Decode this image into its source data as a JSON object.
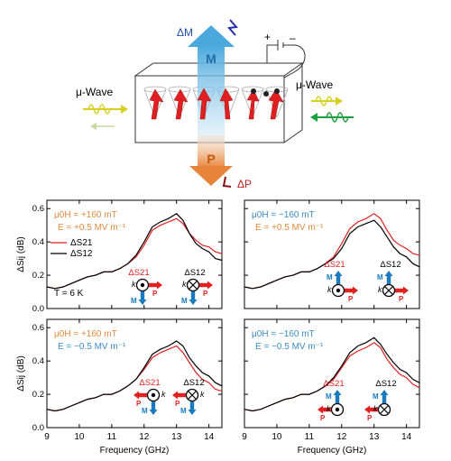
{
  "schematic": {
    "left_label": "μ-Wave",
    "right_label": "μ-Wave",
    "delta_m": "ΔM",
    "m": "M",
    "p": "P",
    "delta_p": "ΔP",
    "plus": "+",
    "minus": "–",
    "colors": {
      "m_arrow": "#5bb4e0",
      "p_arrow": "#e8904a",
      "spin": "#e02020",
      "left_wave": "#d8d020",
      "right_wave": "#d8d020",
      "right_back_wave": "#20a040"
    }
  },
  "chart_data": [
    {
      "type": "line",
      "panel": "top-left",
      "annotation_field": "μ0H = +160 mT",
      "annotation_e": "E = +0.5 MV m⁻¹",
      "annotation_temp": "T = 6 K",
      "field_color": "#e08a3c",
      "efield_color": "#e08a3c",
      "xlabel": "",
      "ylabel": "ΔSij (dB)",
      "xlim": [
        9,
        14.4
      ],
      "ylim": [
        0,
        0.65
      ],
      "yticks": [
        "0.0",
        "0.2",
        "0.4",
        "0.6"
      ],
      "xticks": [],
      "legend": [
        "ΔS21",
        "ΔS12"
      ],
      "legend_position": "left",
      "icon_labels": {
        "s21": "ΔS21",
        "s12": "ΔS12",
        "k": "k",
        "m": "M",
        "p": "P"
      },
      "x": [
        9.0,
        9.25,
        9.5,
        9.75,
        10.0,
        10.25,
        10.5,
        10.75,
        11.0,
        11.25,
        11.5,
        11.75,
        12.0,
        12.25,
        12.5,
        12.75,
        13.0,
        13.2,
        13.4,
        13.6,
        13.8,
        14.0,
        14.2,
        14.4
      ],
      "series": [
        {
          "name": "ΔS21",
          "color": "#e02020",
          "values": [
            0.13,
            0.12,
            0.13,
            0.15,
            0.17,
            0.19,
            0.2,
            0.22,
            0.22,
            0.24,
            0.27,
            0.31,
            0.38,
            0.47,
            0.5,
            0.52,
            0.54,
            0.51,
            0.45,
            0.41,
            0.38,
            0.37,
            0.34,
            0.33
          ]
        },
        {
          "name": "ΔS12",
          "color": "#000000",
          "values": [
            0.13,
            0.12,
            0.13,
            0.15,
            0.17,
            0.19,
            0.2,
            0.22,
            0.22,
            0.24,
            0.27,
            0.32,
            0.4,
            0.49,
            0.52,
            0.54,
            0.57,
            0.53,
            0.45,
            0.39,
            0.36,
            0.34,
            0.3,
            0.29
          ]
        }
      ]
    },
    {
      "type": "line",
      "panel": "top-right",
      "annotation_field": "μ0H = −160 mT",
      "annotation_e": "E = +0.5 MV m⁻¹",
      "field_color": "#3b8cc6",
      "efield_color": "#e08a3c",
      "xlabel": "",
      "ylabel": "",
      "xlim": [
        9,
        14.4
      ],
      "ylim": [
        0,
        0.65
      ],
      "xticks": [],
      "icon_labels": {
        "s21": "ΔS21",
        "s12": "ΔS12",
        "k": "k",
        "m": "M",
        "p": "P"
      },
      "x": [
        9.0,
        9.25,
        9.5,
        9.75,
        10.0,
        10.25,
        10.5,
        10.75,
        11.0,
        11.25,
        11.5,
        11.75,
        12.0,
        12.25,
        12.5,
        12.75,
        13.0,
        13.2,
        13.4,
        13.6,
        13.8,
        14.0,
        14.2,
        14.4
      ],
      "series": [
        {
          "name": "ΔS21",
          "color": "#e02020",
          "values": [
            0.13,
            0.12,
            0.13,
            0.15,
            0.17,
            0.19,
            0.2,
            0.22,
            0.22,
            0.24,
            0.27,
            0.31,
            0.39,
            0.48,
            0.52,
            0.54,
            0.57,
            0.54,
            0.47,
            0.41,
            0.38,
            0.36,
            0.33,
            0.32
          ]
        },
        {
          "name": "ΔS12",
          "color": "#000000",
          "values": [
            0.13,
            0.12,
            0.13,
            0.15,
            0.17,
            0.19,
            0.2,
            0.22,
            0.22,
            0.24,
            0.27,
            0.3,
            0.36,
            0.45,
            0.49,
            0.51,
            0.53,
            0.49,
            0.43,
            0.37,
            0.33,
            0.31,
            0.27,
            0.25
          ]
        }
      ]
    },
    {
      "type": "line",
      "panel": "bottom-left",
      "annotation_field": "μ0H = +160 mT",
      "annotation_e": "E = −0.5 MV m⁻¹",
      "field_color": "#e08a3c",
      "efield_color": "#3b8cc6",
      "xlabel": "Frequency (GHz)",
      "ylabel": "ΔSij (dB)",
      "xlim": [
        9,
        14.4
      ],
      "ylim": [
        0,
        0.65
      ],
      "yticks": [
        "0.0",
        "0.2",
        "0.4",
        "0.6"
      ],
      "xticks": [
        "9",
        "10",
        "11",
        "12",
        "13",
        "14"
      ],
      "icon_labels": {
        "s21": "ΔS21",
        "s12": "ΔS12",
        "k": "k",
        "m": "M",
        "p": "P"
      },
      "x": [
        9.0,
        9.25,
        9.5,
        9.75,
        10.0,
        10.25,
        10.5,
        10.75,
        11.0,
        11.25,
        11.5,
        11.75,
        12.0,
        12.25,
        12.5,
        12.75,
        13.0,
        13.2,
        13.4,
        13.6,
        13.8,
        14.0,
        14.2,
        14.4
      ],
      "series": [
        {
          "name": "ΔS21",
          "color": "#e02020",
          "values": [
            0.11,
            0.1,
            0.11,
            0.13,
            0.15,
            0.17,
            0.18,
            0.2,
            0.2,
            0.22,
            0.25,
            0.29,
            0.35,
            0.42,
            0.45,
            0.47,
            0.49,
            0.45,
            0.39,
            0.33,
            0.29,
            0.27,
            0.23,
            0.22
          ]
        },
        {
          "name": "ΔS12",
          "color": "#000000",
          "values": [
            0.11,
            0.1,
            0.11,
            0.13,
            0.15,
            0.17,
            0.18,
            0.2,
            0.2,
            0.22,
            0.25,
            0.29,
            0.36,
            0.44,
            0.47,
            0.49,
            0.52,
            0.49,
            0.42,
            0.37,
            0.33,
            0.31,
            0.27,
            0.25
          ]
        }
      ]
    },
    {
      "type": "line",
      "panel": "bottom-right",
      "annotation_field": "μ0H = −160 mT",
      "annotation_e": "E = −0.5 MV m⁻¹",
      "field_color": "#3b8cc6",
      "efield_color": "#3b8cc6",
      "xlabel": "Frequency (GHz)",
      "ylabel": "",
      "xlim": [
        9,
        14.4
      ],
      "ylim": [
        0,
        0.65
      ],
      "xticks": [
        "9",
        "10",
        "11",
        "12",
        "13",
        "14"
      ],
      "icon_labels": {
        "s21": "ΔS21",
        "s12": "ΔS12",
        "k": "k",
        "m": "M",
        "p": "P"
      },
      "x": [
        9.0,
        9.25,
        9.5,
        9.75,
        10.0,
        10.25,
        10.5,
        10.75,
        11.0,
        11.25,
        11.5,
        11.75,
        12.0,
        12.25,
        12.5,
        12.75,
        13.0,
        13.2,
        13.4,
        13.6,
        13.8,
        14.0,
        14.2,
        14.4
      ],
      "series": [
        {
          "name": "ΔS21",
          "color": "#e02020",
          "values": [
            0.11,
            0.1,
            0.11,
            0.13,
            0.15,
            0.17,
            0.18,
            0.2,
            0.2,
            0.22,
            0.25,
            0.29,
            0.36,
            0.43,
            0.46,
            0.48,
            0.51,
            0.48,
            0.41,
            0.36,
            0.32,
            0.3,
            0.26,
            0.24
          ]
        },
        {
          "name": "ΔS12",
          "color": "#000000",
          "values": [
            0.11,
            0.1,
            0.11,
            0.13,
            0.15,
            0.17,
            0.18,
            0.2,
            0.2,
            0.22,
            0.25,
            0.3,
            0.37,
            0.45,
            0.49,
            0.51,
            0.54,
            0.5,
            0.44,
            0.39,
            0.35,
            0.33,
            0.29,
            0.27
          ]
        }
      ]
    }
  ]
}
